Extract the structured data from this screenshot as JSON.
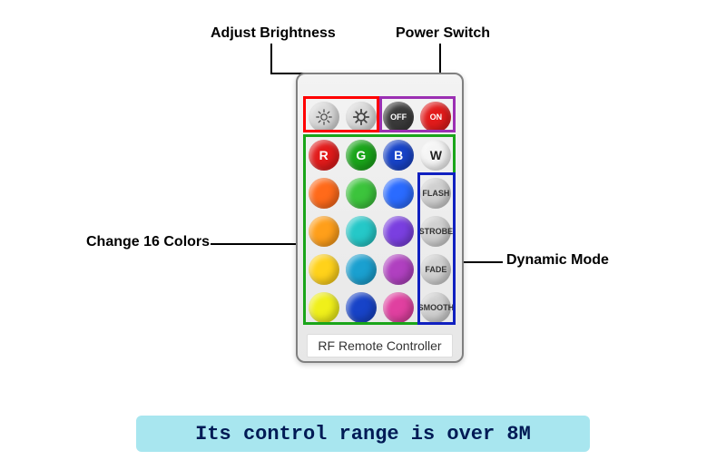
{
  "annotations": {
    "brightness": "Adjust Brightness",
    "power": "Power Switch",
    "colors": "Change 16 Colors",
    "modes": "Dynamic Mode"
  },
  "remote_label": "RF Remote Controller",
  "caption": {
    "text": "Its control range is over 8M",
    "bg": "#a8e6ef",
    "color": "#001a55"
  },
  "highlights": {
    "brightness": {
      "color": "#ff0000"
    },
    "power": {
      "color": "#9b2fb3"
    },
    "colors": {
      "color": "#1aa51a"
    },
    "modes": {
      "color": "#1020c0"
    }
  },
  "buttons": {
    "row1": [
      {
        "kind": "bright_down",
        "bg": "#d9d9d9",
        "fg": "#444"
      },
      {
        "kind": "bright_up",
        "bg": "#d9d9d9",
        "fg": "#444"
      },
      {
        "kind": "text",
        "label": "OFF",
        "bg": "#3a3a3a",
        "fg": "#ffffff"
      },
      {
        "kind": "text",
        "label": "ON",
        "bg": "#e21b1b",
        "fg": "#ffffff"
      }
    ],
    "row2": [
      {
        "kind": "text",
        "label": "R",
        "bg": "#e21b1b",
        "fg": "#ffffff",
        "big": true
      },
      {
        "kind": "text",
        "label": "G",
        "bg": "#1aa51a",
        "fg": "#ffffff",
        "big": true
      },
      {
        "kind": "text",
        "label": "B",
        "bg": "#1743c8",
        "fg": "#ffffff",
        "big": true
      },
      {
        "kind": "text",
        "label": "W",
        "bg": "#f5f5f5",
        "fg": "#222222",
        "big": true
      }
    ],
    "row3": [
      {
        "kind": "color",
        "bg": "#ff6a1a"
      },
      {
        "kind": "color",
        "bg": "#3cc43c"
      },
      {
        "kind": "color",
        "bg": "#2a6bff"
      },
      {
        "kind": "text",
        "label": "FLASH",
        "bg": "#d0d0d0",
        "fg": "#333"
      }
    ],
    "row4": [
      {
        "kind": "color",
        "bg": "#ff9f1a"
      },
      {
        "kind": "color",
        "bg": "#25c8c8"
      },
      {
        "kind": "color",
        "bg": "#7a3fe0"
      },
      {
        "kind": "text",
        "label": "STROBE",
        "bg": "#d0d0d0",
        "fg": "#333"
      }
    ],
    "row5": [
      {
        "kind": "color",
        "bg": "#ffd21a"
      },
      {
        "kind": "color",
        "bg": "#1aa0d0"
      },
      {
        "kind": "color",
        "bg": "#b040c0"
      },
      {
        "kind": "text",
        "label": "FADE",
        "bg": "#d0d0d0",
        "fg": "#333"
      }
    ],
    "row6": [
      {
        "kind": "color",
        "bg": "#f0f01a"
      },
      {
        "kind": "color",
        "bg": "#1743c8"
      },
      {
        "kind": "color",
        "bg": "#e040a0"
      },
      {
        "kind": "text",
        "label": "SMOOTH",
        "bg": "#d0d0d0",
        "fg": "#333"
      }
    ]
  }
}
